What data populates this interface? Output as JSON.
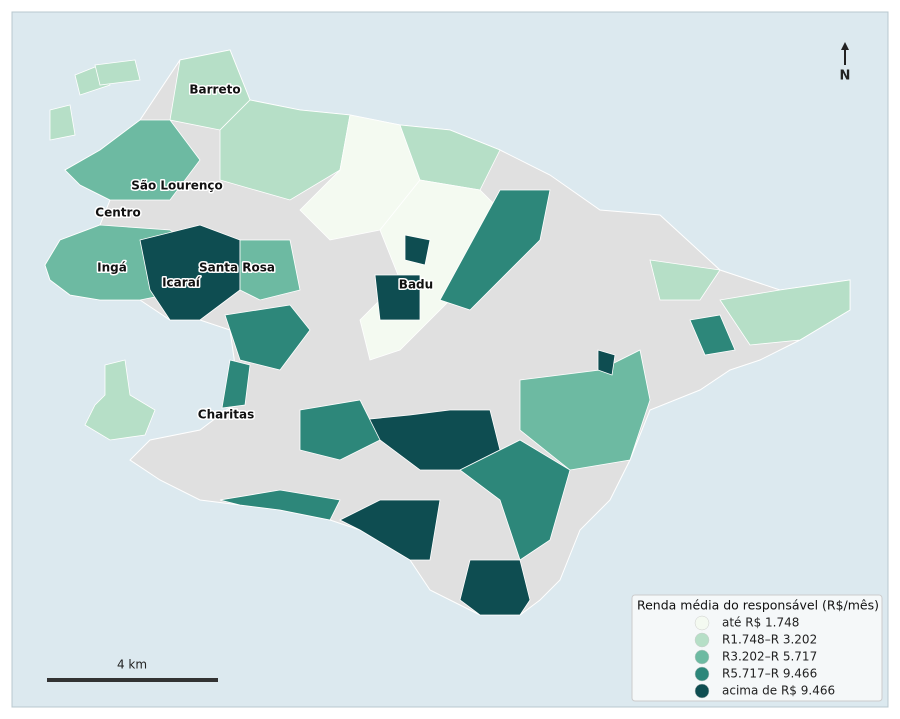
{
  "labels": [
    "Barreto",
    "São Lourenço",
    "Centro",
    "Ingá",
    "Icaraí",
    "Santa Rosa",
    "Badu",
    "Charitas"
  ],
  "north": "N",
  "scale_bar": "4 km",
  "legend": {
    "title": "Renda média do responsável (R$/mês)",
    "items": [
      {
        "label": "até R$ 1.748",
        "color": "#f4faf1"
      },
      {
        "label": "R1.748–R 3.202",
        "color": "#b6dfc7"
      },
      {
        "label": "R3.202–R 5.717",
        "color": "#6dbaa2"
      },
      {
        "label": "R5.717–R 9.466",
        "color": "#2d877a"
      },
      {
        "label": "acima de R$ 9.466",
        "color": "#0e4d51"
      }
    ]
  }
}
